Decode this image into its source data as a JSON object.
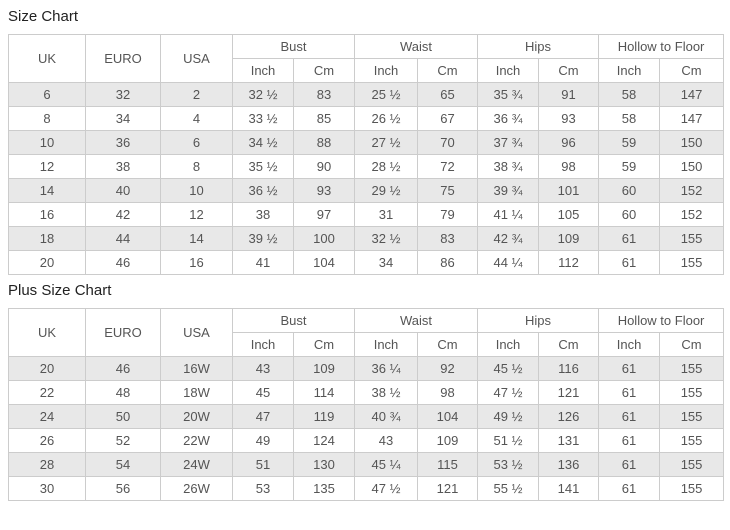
{
  "charts": [
    {
      "title": "Size Chart",
      "columns": {
        "size": [
          "UK",
          "EURO",
          "USA"
        ],
        "groups": [
          "Bust",
          "Waist",
          "Hips",
          "Hollow to Floor"
        ],
        "units": [
          "Inch",
          "Cm"
        ]
      },
      "rows": [
        [
          "6",
          "32",
          "2",
          "32 ½",
          "83",
          "25 ½",
          "65",
          "35 ¾",
          "91",
          "58",
          "147"
        ],
        [
          "8",
          "34",
          "4",
          "33 ½",
          "85",
          "26 ½",
          "67",
          "36 ¾",
          "93",
          "58",
          "147"
        ],
        [
          "10",
          "36",
          "6",
          "34 ½",
          "88",
          "27 ½",
          "70",
          "37 ¾",
          "96",
          "59",
          "150"
        ],
        [
          "12",
          "38",
          "8",
          "35 ½",
          "90",
          "28 ½",
          "72",
          "38 ¾",
          "98",
          "59",
          "150"
        ],
        [
          "14",
          "40",
          "10",
          "36 ½",
          "93",
          "29 ½",
          "75",
          "39 ¾",
          "101",
          "60",
          "152"
        ],
        [
          "16",
          "42",
          "12",
          "38",
          "97",
          "31",
          "79",
          "41 ¼",
          "105",
          "60",
          "152"
        ],
        [
          "18",
          "44",
          "14",
          "39 ½",
          "100",
          "32 ½",
          "83",
          "42 ¾",
          "109",
          "61",
          "155"
        ],
        [
          "20",
          "46",
          "16",
          "41",
          "104",
          "34",
          "86",
          "44 ¼",
          "112",
          "61",
          "155"
        ]
      ]
    },
    {
      "title": "Plus Size Chart",
      "columns": {
        "size": [
          "UK",
          "EURO",
          "USA"
        ],
        "groups": [
          "Bust",
          "Waist",
          "Hips",
          "Hollow to Floor"
        ],
        "units": [
          "Inch",
          "Cm"
        ]
      },
      "rows": [
        [
          "20",
          "46",
          "16W",
          "43",
          "109",
          "36 ¼",
          "92",
          "45 ½",
          "116",
          "61",
          "155"
        ],
        [
          "22",
          "48",
          "18W",
          "45",
          "114",
          "38 ½",
          "98",
          "47 ½",
          "121",
          "61",
          "155"
        ],
        [
          "24",
          "50",
          "20W",
          "47",
          "119",
          "40 ¾",
          "104",
          "49 ½",
          "126",
          "61",
          "155"
        ],
        [
          "26",
          "52",
          "22W",
          "49",
          "124",
          "43",
          "109",
          "51 ½",
          "131",
          "61",
          "155"
        ],
        [
          "28",
          "54",
          "24W",
          "51",
          "130",
          "45 ¼",
          "115",
          "53 ½",
          "136",
          "61",
          "155"
        ],
        [
          "30",
          "56",
          "26W",
          "53",
          "135",
          "47 ½",
          "121",
          "55 ½",
          "141",
          "61",
          "155"
        ]
      ]
    }
  ],
  "colors": {
    "stripe": "#e8e8e8",
    "border": "#cccccc",
    "text": "#555555",
    "title": "#222222"
  }
}
